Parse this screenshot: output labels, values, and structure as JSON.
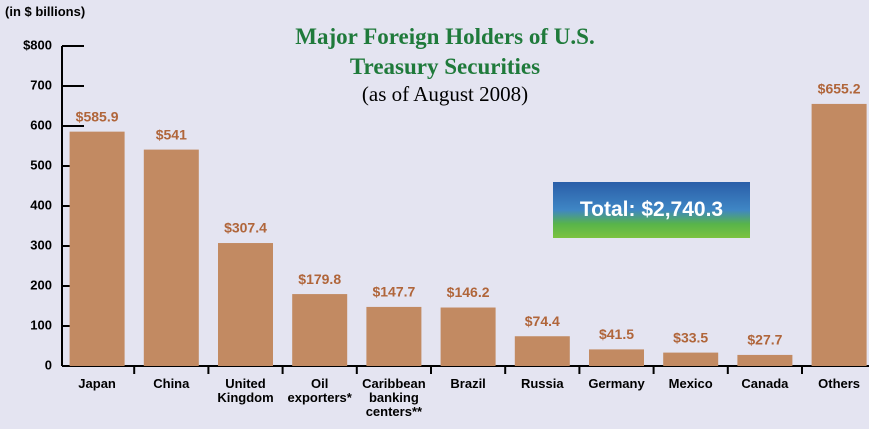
{
  "chart_data": {
    "type": "bar",
    "title": "Major Foreign Holders of U.S. Treasury Securities",
    "subtitle": "(as of August 2008)",
    "y_axis_label": "(in $ billions)",
    "annotation": "Total: $2,740.3",
    "categories": [
      "Japan",
      "China",
      "United Kingdom",
      "Oil exporters*",
      "Caribbean banking centers**",
      "Brazil",
      "Russia",
      "Germany",
      "Mexico",
      "Canada",
      "Others"
    ],
    "values": [
      585.9,
      541,
      307.4,
      179.8,
      147.7,
      146.2,
      74.4,
      41.5,
      33.5,
      27.7,
      655.2
    ],
    "value_labels": [
      "$585.9",
      "$541",
      "$307.4",
      "$179.8",
      "$147.7",
      "$146.2",
      "$74.4",
      "$41.5",
      "$33.5",
      "$27.7",
      "$655.2"
    ],
    "color": "#c28a62",
    "label_color": "#b0653a",
    "ylim": [
      0,
      800
    ],
    "yticks": [
      0,
      100,
      200,
      300,
      400,
      500,
      600,
      700,
      {
        "value": 800,
        "label": "$800"
      }
    ]
  }
}
